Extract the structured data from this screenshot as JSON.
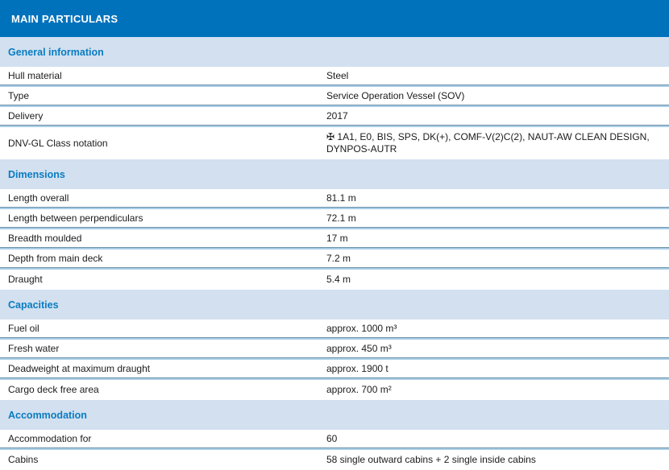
{
  "title": "MAIN PARTICULARS",
  "colors": {
    "title_bar_bg": "#0072bc",
    "title_bar_text": "#ffffff",
    "section_band_bg": "#d2e0f0",
    "section_heading_text": "#0a7cc0",
    "row_separator_dark": "#6f93a9",
    "row_separator_light": "#a8cde6",
    "body_text": "#1b1b1b"
  },
  "sections": [
    {
      "heading": "General information",
      "rows": [
        {
          "label": "Hull material",
          "value": "Steel"
        },
        {
          "label": "Type",
          "value": "Service Operation Vessel (SOV)"
        },
        {
          "label": "Delivery",
          "value": "2017"
        },
        {
          "label": "DNV-GL Class notation",
          "value": "✠ 1A1, E0, BIS, SPS, DK(+), COMF-V(2)C(2), NAUT-AW CLEAN DESIGN, DYNPOS-AUTR"
        }
      ]
    },
    {
      "heading": "Dimensions",
      "rows": [
        {
          "label": "Length overall",
          "value": "81.1 m"
        },
        {
          "label": "Length between perpendiculars",
          "value": "72.1 m"
        },
        {
          "label": "Breadth moulded",
          "value": "17 m"
        },
        {
          "label": "Depth from main deck",
          "value": "7.2 m"
        },
        {
          "label": "Draught",
          "value": "5.4 m"
        }
      ]
    },
    {
      "heading": "Capacities",
      "rows": [
        {
          "label": "Fuel oil",
          "value": "approx. 1000 m³"
        },
        {
          "label": "Fresh water",
          "value": "approx. 450 m³"
        },
        {
          "label": "Deadweight at maximum draught",
          "value": "approx. 1900 t"
        },
        {
          "label": "Cargo deck free area",
          "value": "approx. 700 m²"
        }
      ]
    },
    {
      "heading": "Accommodation",
      "rows": [
        {
          "label": "Accommodation for",
          "value": "60"
        },
        {
          "label": "Cabins",
          "value": "58 single outward cabins + 2 single inside cabins"
        }
      ]
    }
  ]
}
